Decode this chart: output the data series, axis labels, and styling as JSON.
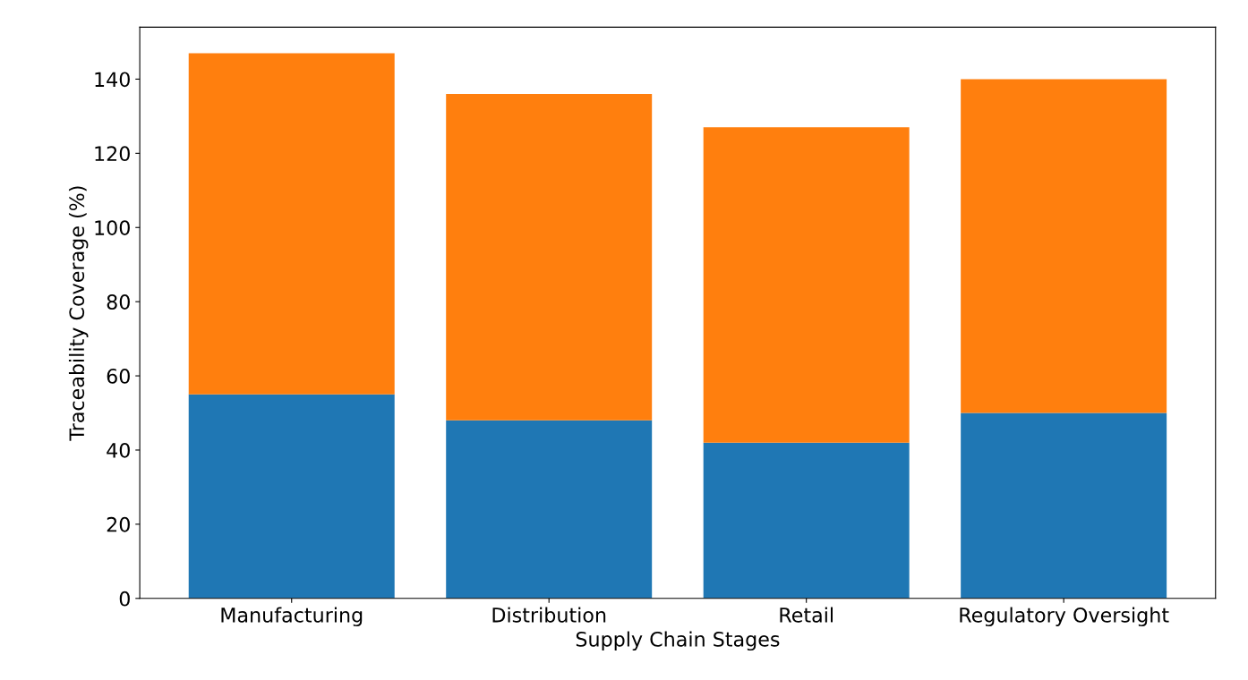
{
  "chart_data": {
    "type": "bar",
    "stacked": true,
    "xlabel": "Supply Chain Stages",
    "ylabel": "Traceability Coverage (%)",
    "categories": [
      "Manufacturing",
      "Distribution",
      "Retail",
      "Regulatory Oversight"
    ],
    "series": [
      {
        "color": "#1f77b4",
        "values": [
          55,
          48,
          42,
          50
        ]
      },
      {
        "color": "#ff7f0e",
        "values": [
          92,
          88,
          85,
          90
        ]
      }
    ],
    "ylim": [
      0,
      154
    ],
    "yticks": [
      0,
      20,
      40,
      60,
      80,
      100,
      120,
      140
    ],
    "grid": false,
    "legend": false
  }
}
